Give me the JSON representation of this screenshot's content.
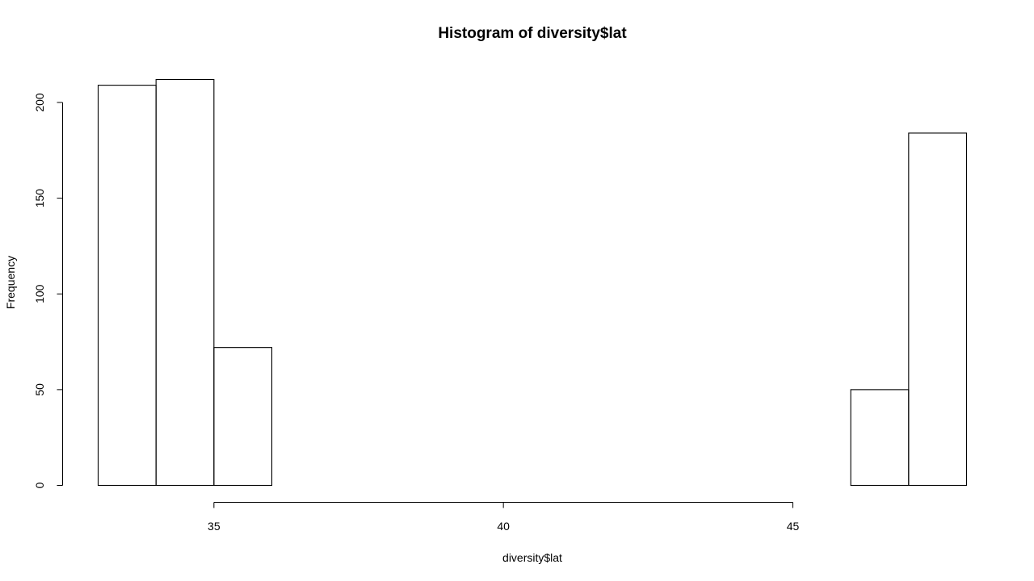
{
  "chart_data": {
    "type": "bar",
    "subtype": "histogram",
    "title": "Histogram of diversity$lat",
    "xlabel": "diversity$lat",
    "ylabel": "Frequency",
    "bin_edges": [
      33,
      34,
      35,
      36,
      37,
      38,
      39,
      40,
      41,
      42,
      43,
      44,
      45,
      46,
      47,
      48
    ],
    "counts": [
      209,
      212,
      72,
      0,
      0,
      0,
      0,
      0,
      0,
      0,
      0,
      0,
      0,
      50,
      184
    ],
    "xticks": [
      35,
      40,
      45
    ],
    "yticks": [
      0,
      50,
      100,
      150,
      200
    ],
    "xlim": [
      33,
      48
    ],
    "ylim": [
      0,
      212
    ],
    "grid": false,
    "legend": "none"
  }
}
